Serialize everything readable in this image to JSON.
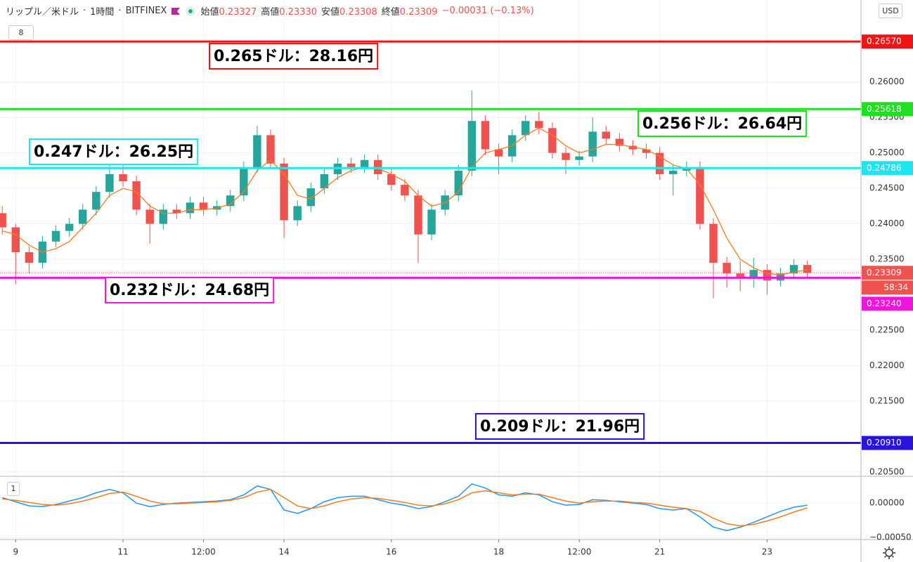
{
  "header": {
    "symbol": "リップル／米ドル",
    "interval": "1時間",
    "exchange": "BITFINEX",
    "open_label": "始値",
    "open": "0.23327",
    "high_label": "高値",
    "high": "0.23330",
    "low_label": "安値",
    "low": "0.23308",
    "close_label": "終値",
    "close": "0.23309",
    "change": "−0.00031 (−0.13%)",
    "currency": "USD",
    "indicator_count": "8"
  },
  "chart_data": [
    {
      "type": "candlestick",
      "up_color": "#26a69a",
      "down_color": "#ef5350",
      "x": [
        -6,
        0,
        6,
        12,
        18,
        24,
        30,
        36,
        42,
        48,
        54,
        60,
        66,
        72,
        78,
        84,
        90,
        96,
        102,
        108,
        114,
        120,
        126,
        132,
        138,
        144,
        150,
        156,
        162,
        168,
        174,
        180,
        186,
        192,
        198,
        204,
        210,
        216,
        222,
        228,
        234,
        240,
        246,
        252,
        258,
        264,
        270,
        276,
        282,
        288,
        294,
        300,
        306,
        312,
        318,
        324,
        330,
        336,
        342,
        348,
        354
      ],
      "open": [
        0.2415,
        0.2395,
        0.236,
        0.2345,
        0.2375,
        0.239,
        0.24,
        0.242,
        0.2445,
        0.247,
        0.246,
        0.242,
        0.24,
        0.242,
        0.2415,
        0.243,
        0.242,
        0.2425,
        0.244,
        0.248,
        0.2525,
        0.2485,
        0.2405,
        0.2425,
        0.245,
        0.247,
        0.2485,
        0.248,
        0.249,
        0.247,
        0.2455,
        0.244,
        0.2385,
        0.242,
        0.244,
        0.2475,
        0.2545,
        0.2505,
        0.2495,
        0.2525,
        0.2545,
        0.2535,
        0.25,
        0.249,
        0.2495,
        0.253,
        0.252,
        0.251,
        0.2505,
        0.25,
        0.247,
        0.2475,
        0.248,
        0.24,
        0.2345,
        0.233,
        0.2325,
        0.2335,
        0.232,
        0.233,
        0.2342
      ],
      "high": [
        0.2425,
        0.24,
        0.2368,
        0.2383,
        0.2398,
        0.2408,
        0.2428,
        0.2453,
        0.2485,
        0.2488,
        0.2468,
        0.2428,
        0.2428,
        0.2428,
        0.2438,
        0.2438,
        0.2433,
        0.2448,
        0.2488,
        0.2538,
        0.2533,
        0.2493,
        0.2433,
        0.2458,
        0.2478,
        0.2493,
        0.2493,
        0.2498,
        0.2498,
        0.2478,
        0.2463,
        0.2448,
        0.2428,
        0.2448,
        0.2483,
        0.2588,
        0.2553,
        0.2513,
        0.2533,
        0.2553,
        0.2558,
        0.2543,
        0.2508,
        0.2503,
        0.255,
        0.2538,
        0.2528,
        0.2518,
        0.2513,
        0.2508,
        0.2483,
        0.2488,
        0.2488,
        0.2408,
        0.2353,
        0.2348,
        0.2352,
        0.2343,
        0.2338,
        0.235,
        0.2348
      ],
      "low": [
        0.2385,
        0.2315,
        0.233,
        0.2337,
        0.2367,
        0.2382,
        0.2392,
        0.2412,
        0.2437,
        0.2452,
        0.2412,
        0.2372,
        0.2392,
        0.2407,
        0.2407,
        0.2412,
        0.2412,
        0.2417,
        0.2432,
        0.2472,
        0.2477,
        0.238,
        0.2397,
        0.2417,
        0.2442,
        0.2462,
        0.2472,
        0.2472,
        0.2462,
        0.2447,
        0.2432,
        0.2345,
        0.2377,
        0.2412,
        0.2432,
        0.2467,
        0.2497,
        0.247,
        0.2487,
        0.2517,
        0.2527,
        0.2492,
        0.247,
        0.2482,
        0.2487,
        0.2512,
        0.2502,
        0.2497,
        0.2492,
        0.2462,
        0.244,
        0.2467,
        0.2392,
        0.2295,
        0.231,
        0.2305,
        0.231,
        0.23,
        0.2312,
        0.2322,
        0.2325
      ],
      "close": [
        0.2395,
        0.236,
        0.2345,
        0.2375,
        0.239,
        0.24,
        0.242,
        0.2445,
        0.247,
        0.246,
        0.242,
        0.24,
        0.242,
        0.2415,
        0.243,
        0.242,
        0.2425,
        0.244,
        0.248,
        0.2525,
        0.2485,
        0.2405,
        0.2425,
        0.245,
        0.247,
        0.2485,
        0.248,
        0.249,
        0.247,
        0.2455,
        0.244,
        0.2385,
        0.242,
        0.244,
        0.2475,
        0.2545,
        0.2505,
        0.2495,
        0.2525,
        0.2545,
        0.2535,
        0.25,
        0.249,
        0.2495,
        0.253,
        0.252,
        0.251,
        0.2505,
        0.25,
        0.247,
        0.2475,
        0.248,
        0.24,
        0.2345,
        0.233,
        0.2325,
        0.2335,
        0.232,
        0.233,
        0.2342,
        0.23309
      ],
      "ma": {
        "color": "#f57c1f",
        "values": [
          0.239,
          0.2385,
          0.237,
          0.236,
          0.2365,
          0.2375,
          0.2395,
          0.2415,
          0.244,
          0.245,
          0.2445,
          0.2425,
          0.2415,
          0.2415,
          0.242,
          0.242,
          0.2422,
          0.2428,
          0.2445,
          0.2475,
          0.249,
          0.247,
          0.244,
          0.2435,
          0.245,
          0.2465,
          0.2475,
          0.248,
          0.2478,
          0.247,
          0.246,
          0.244,
          0.2425,
          0.243,
          0.2445,
          0.248,
          0.25,
          0.2505,
          0.251,
          0.2525,
          0.2535,
          0.2525,
          0.251,
          0.25,
          0.2505,
          0.2512,
          0.2512,
          0.2508,
          0.2505,
          0.2495,
          0.2483,
          0.2478,
          0.2455,
          0.242,
          0.238,
          0.235,
          0.2338,
          0.233,
          0.2328,
          0.2332,
          0.2335
        ]
      },
      "xlim": [
        -7,
        378
      ],
      "ylim": [
        0.2044,
        0.27156
      ],
      "xticks": [
        {
          "value": 0,
          "label": "9"
        },
        {
          "value": 48,
          "label": "11"
        },
        {
          "value": 84,
          "label": "12:00"
        },
        {
          "value": 120,
          "label": "14"
        },
        {
          "value": 168,
          "label": "16"
        },
        {
          "value": 216,
          "label": "18"
        },
        {
          "value": 252,
          "label": "12:00"
        },
        {
          "value": 288,
          "label": "21"
        },
        {
          "value": 336,
          "label": "23"
        }
      ],
      "yticks": [
        {
          "value": 0.205,
          "label": "0.20500"
        },
        {
          "value": 0.215,
          "label": "0.21500"
        },
        {
          "value": 0.22,
          "label": "0.22000"
        },
        {
          "value": 0.225,
          "label": "0.22500"
        },
        {
          "value": 0.235,
          "label": "0.23500"
        },
        {
          "value": 0.24,
          "label": "0.24000"
        },
        {
          "value": 0.245,
          "label": "0.24500"
        },
        {
          "value": 0.25,
          "label": "0.25000"
        },
        {
          "value": 0.255,
          "label": "0.25500"
        },
        {
          "value": 0.26,
          "label": "0.26000"
        }
      ],
      "grid": true,
      "levels": [
        {
          "value": 0.2657,
          "label": "0.26570",
          "note": "0.265ドル：28.16円",
          "color": "#f01414"
        },
        {
          "value": 0.25618,
          "label": "0.25618",
          "note": "0.256ドル：26.64円",
          "color": "#1ee01e"
        },
        {
          "value": 0.24786,
          "label": "0.24786",
          "note": "0.247ドル：26.25円",
          "color": "#1ee6f0"
        },
        {
          "value": 0.2324,
          "label": "0.23240",
          "note": "0.232ドル：24.68円",
          "color": "#f014dc"
        },
        {
          "value": 0.2091,
          "label": "0.20910",
          "note": "0.209ドル：21.96円",
          "color": "#2814dc"
        }
      ],
      "price_line": {
        "value": 0.23309,
        "label": "0.23309",
        "countdown": "58:34",
        "color": "#ef5350"
      }
    },
    {
      "type": "macd",
      "pane_label": "1",
      "x": [
        -6,
        0,
        6,
        12,
        18,
        24,
        30,
        36,
        42,
        48,
        54,
        60,
        66,
        72,
        78,
        84,
        90,
        96,
        102,
        108,
        114,
        120,
        126,
        132,
        138,
        144,
        150,
        156,
        162,
        168,
        174,
        180,
        186,
        192,
        198,
        204,
        210,
        216,
        222,
        228,
        234,
        240,
        246,
        252,
        258,
        264,
        270,
        276,
        282,
        288,
        294,
        300,
        306,
        312,
        318,
        324,
        330,
        336,
        342,
        348,
        354
      ],
      "series": [
        {
          "color": "#2196f3",
          "values": [
            8e-05,
            2e-05,
            -4e-05,
            -5e-05,
            -2e-05,
            3e-05,
            8e-05,
            0.00015,
            0.0002,
            0.00015,
            0,
            -5e-05,
            -2e-05,
            0,
            1e-05,
            2e-05,
            3e-05,
            5e-05,
            0.00012,
            0.00025,
            0.0002,
            -0.0001,
            -0.00015,
            -8e-05,
            2e-05,
            8e-05,
            0.0001,
            0.0001,
            5e-05,
            0,
            -3e-05,
            -8e-05,
            -5e-05,
            2e-05,
            0.0001,
            0.00028,
            0.00022,
            0.00012,
            0.0001,
            0.00015,
            0.00012,
            2e-05,
            -3e-05,
            -2e-05,
            5e-05,
            4e-05,
            2e-05,
            0,
            -2e-05,
            -8e-05,
            -0.0001,
            -8e-05,
            -0.0002,
            -0.00035,
            -0.0004,
            -0.00035,
            -0.00028,
            -0.0002,
            -0.00012,
            -6e-05,
            -3e-05
          ]
        },
        {
          "color": "#f57c1f",
          "values": [
            6e-05,
            4e-05,
            1e-05,
            -2e-05,
            -3e-05,
            -1e-05,
            3e-05,
            8e-05,
            0.00014,
            0.00016,
            0.0001,
            3e-05,
            -1e-05,
            -1e-05,
            0,
            1e-05,
            2e-05,
            4e-05,
            8e-05,
            0.00016,
            0.0002,
            8e-05,
            -4e-05,
            -8e-05,
            -4e-05,
            2e-05,
            6e-05,
            8e-05,
            7e-05,
            4e-05,
            1e-05,
            -3e-05,
            -4e-05,
            -1e-05,
            5e-05,
            0.00015,
            0.00018,
            0.00015,
            0.00012,
            0.00013,
            0.00013,
            8e-05,
            3e-05,
            0,
            2e-05,
            3e-05,
            3e-05,
            1e-05,
            0,
            -3e-05,
            -6e-05,
            -8e-05,
            -0.00012,
            -0.00022,
            -0.0003,
            -0.00033,
            -0.00031,
            -0.00026,
            -0.0002,
            -0.00013,
            -7e-05
          ]
        }
      ],
      "xlim": [
        -7,
        378
      ],
      "ylim": [
        -0.00053,
        0.00037
      ],
      "yticks": [
        {
          "value": 0,
          "label": "0.00000"
        },
        {
          "value": -0.0005,
          "label": "−0.00050"
        }
      ]
    }
  ]
}
